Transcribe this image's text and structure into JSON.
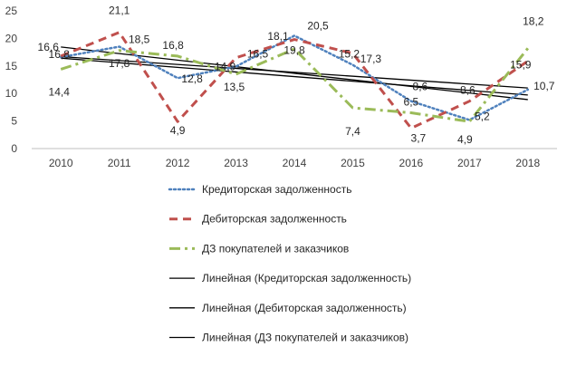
{
  "chart_data": {
    "type": "line",
    "categories": [
      "2010",
      "2011",
      "2012",
      "2013",
      "2014",
      "2015",
      "2016",
      "2017",
      "2018"
    ],
    "ylim": [
      0,
      25
    ],
    "yticks": [
      0,
      5,
      10,
      15,
      20,
      25
    ],
    "grid": false,
    "legend_position": "bottom",
    "series": [
      {
        "name": "Кредиторская задолженность",
        "values": [
          16.6,
          18.5,
          12.8,
          14.9,
          20.5,
          15.2,
          8.6,
          5.2,
          10.7
        ],
        "color": "#4f81bd",
        "style": "dotted",
        "labels": [
          "16,6",
          "18,5",
          "12,8",
          "14,9",
          "20,5",
          "15,2",
          "8,6",
          "5,2",
          "10,7"
        ]
      },
      {
        "name": "Дебиторская задолженность",
        "values": [
          16.8,
          21.1,
          4.9,
          16.5,
          19.8,
          17.3,
          3.7,
          8.6,
          15.9
        ],
        "color": "#c0504d",
        "style": "dashed",
        "labels": [
          "16,8",
          "21,1",
          "4,9",
          "16,5",
          "19,8",
          "17,3",
          "3,7",
          "8,6",
          "15,9"
        ]
      },
      {
        "name": "ДЗ покупателей и заказчиков",
        "values": [
          14.4,
          17.8,
          16.8,
          13.5,
          18.1,
          7.4,
          6.5,
          4.9,
          18.2
        ],
        "color": "#9bbb59",
        "style": "dashdot",
        "labels": [
          "14,4",
          "17,8",
          "16,8",
          "13,5",
          "18,1",
          "7,4",
          "6,5",
          "4,9",
          "18,2"
        ]
      },
      {
        "name": "Линейная (Кредиторская задолженность)",
        "trend_of": 0,
        "color": "#000000",
        "style": "solid"
      },
      {
        "name": "Линейная (Дебиторская задолженность)",
        "trend_of": 1,
        "color": "#000000",
        "style": "solid"
      },
      {
        "name": "Линейная (ДЗ покупателей и заказчиков)",
        "trend_of": 2,
        "color": "#000000",
        "style": "solid"
      }
    ]
  }
}
